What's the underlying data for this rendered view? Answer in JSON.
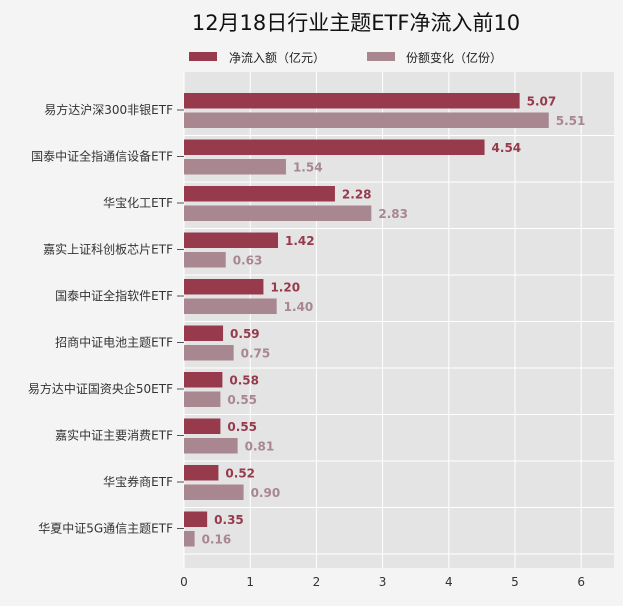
{
  "chart_data": {
    "type": "bar",
    "orientation": "horizontal",
    "title": "12月18日行业主题ETF净流入前10",
    "categories": [
      "易方达沪深300非银ETF",
      "国泰中证全指通信设备ETF",
      "华宝化工ETF",
      "嘉实上证科创板芯片ETF",
      "国泰中证全指软件ETF",
      "招商中证电池主题ETF",
      "易方达中证国资央企50ETF",
      "嘉实中证主要消费ETF",
      "华宝券商ETF",
      "华夏中证5G通信主题ETF"
    ],
    "series": [
      {
        "name": "净流入额（亿元）",
        "color": "#963a4c",
        "label_color": "#963a4c",
        "values": [
          5.07,
          4.54,
          2.28,
          1.42,
          1.2,
          0.59,
          0.58,
          0.55,
          0.52,
          0.35
        ],
        "labels": [
          "5.07",
          "4.54",
          "2.28",
          "1.42",
          "1.20",
          "0.59",
          "0.58",
          "0.55",
          "0.52",
          "0.35"
        ]
      },
      {
        "name": "份额变化（亿份）",
        "color": "#a88790",
        "label_color": "#a88790",
        "values": [
          5.51,
          1.54,
          2.83,
          0.63,
          1.4,
          0.75,
          0.55,
          0.81,
          0.9,
          0.16
        ],
        "labels": [
          "5.51",
          "1.54",
          "2.83",
          "0.63",
          "1.40",
          "0.75",
          "0.55",
          "0.81",
          "0.90",
          "0.16"
        ]
      }
    ],
    "xlim": [
      0,
      6.5
    ],
    "xticks": [
      "0",
      "1",
      "2",
      "3",
      "4",
      "5",
      "6"
    ],
    "grid": true,
    "legend_position": "top"
  }
}
